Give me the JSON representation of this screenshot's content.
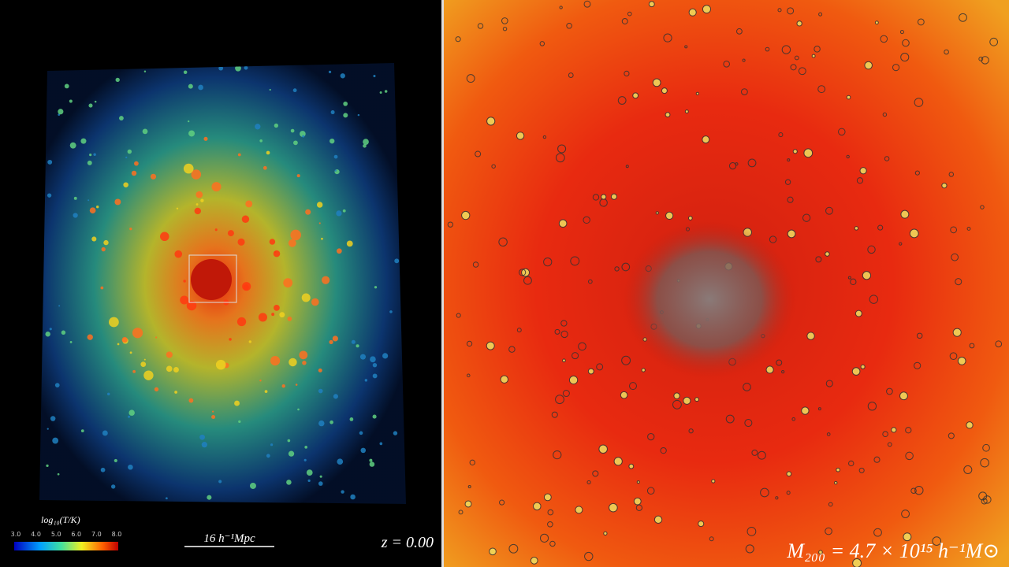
{
  "left_panel": {
    "colorbar": {
      "label": "log₁₀(T/K)",
      "ticks": [
        "3.0",
        "4.0",
        "5.0",
        "6.0",
        "7.0",
        "8.0"
      ]
    },
    "scale_bar": "16 h⁻¹Mpc",
    "redshift": "z = 0.00"
  },
  "right_panel": {
    "mass": "M₂₀₀ = 4.7 × 10¹⁵ h⁻¹M⊙"
  }
}
